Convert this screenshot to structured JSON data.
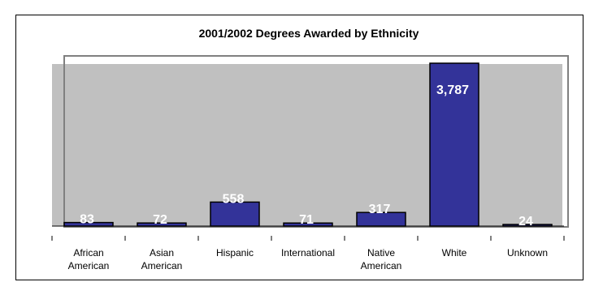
{
  "chart_data": {
    "type": "bar",
    "title": "2001/2002 Degrees Awarded by Ethnicity",
    "categories": [
      [
        "African",
        "American"
      ],
      [
        "Asian",
        "American"
      ],
      [
        "Hispanic"
      ],
      [
        "International"
      ],
      [
        "Native",
        "American"
      ],
      [
        "White"
      ],
      [
        "Unknown"
      ]
    ],
    "values": [
      83,
      72,
      558,
      71,
      317,
      3787,
      24
    ],
    "value_labels": [
      "83",
      "72",
      "558",
      "71",
      "317",
      "3,787",
      "24"
    ],
    "ylim": [
      0,
      3787
    ],
    "grid": false,
    "legend": "none",
    "colors": {
      "bar_fill": "#333399",
      "bar_stroke": "#000000",
      "plot_background": "#c0c0c0",
      "data_label": "#ffffff"
    }
  }
}
